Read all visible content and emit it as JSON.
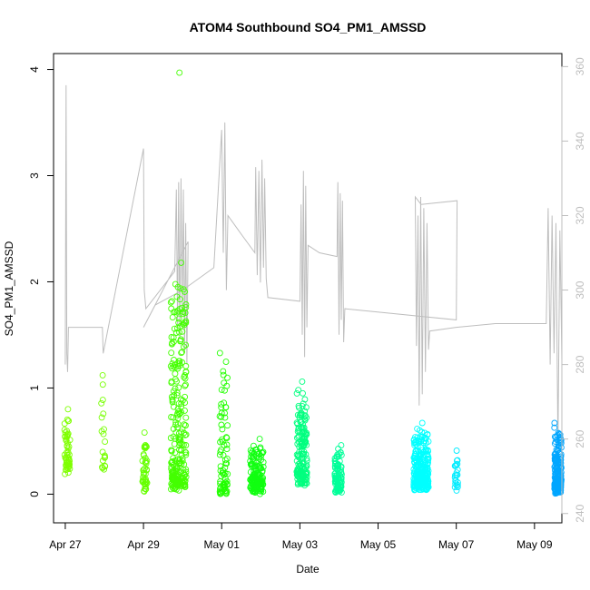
{
  "chart_data": {
    "type": "scatter",
    "title": "ATOM4 Southbound SO4_PM1_AMSSD",
    "xlabel": "Date",
    "ylabel": "SO4_PM1_AMSSD",
    "xlim": [
      -0.3,
      12.7
    ],
    "ylim": [
      -0.27,
      4.15
    ],
    "right_ylim": [
      237.5,
      363.5
    ],
    "x_ticks": [
      {
        "value": 0,
        "label": "Apr 27"
      },
      {
        "value": 2,
        "label": "Apr 29"
      },
      {
        "value": 4,
        "label": "May 01"
      },
      {
        "value": 6,
        "label": "May 03"
      },
      {
        "value": 8,
        "label": "May 05"
      },
      {
        "value": 10,
        "label": "May 07"
      },
      {
        "value": 12,
        "label": "May 09"
      }
    ],
    "y_ticks": [
      0,
      1,
      2,
      3,
      4
    ],
    "right_y_ticks": [
      240,
      260,
      280,
      300,
      320,
      340,
      360
    ],
    "legend": "none",
    "secondary_series_color": "#bebebe",
    "scatter_clusters": [
      {
        "x": 0.05,
        "spread": 0.07,
        "n": 55,
        "median": 0.3,
        "max": 0.8,
        "color": "#7fff00"
      },
      {
        "x": 0.97,
        "spread": 0.05,
        "n": 20,
        "median": 0.3,
        "max": 1.12,
        "color": "#77ff00"
      },
      {
        "x": 2.03,
        "spread": 0.06,
        "n": 45,
        "median": 0.12,
        "max": 0.58,
        "color": "#66ff00"
      },
      {
        "x": 2.9,
        "spread": 0.2,
        "n": 260,
        "median": 0.15,
        "max": 2.18,
        "color": "#44ff00"
      },
      {
        "x": 4.05,
        "spread": 0.1,
        "n": 80,
        "median": 0.1,
        "max": 1.33,
        "color": "#22ff00"
      },
      {
        "x": 4.9,
        "spread": 0.17,
        "n": 150,
        "median": 0.12,
        "max": 0.52,
        "color": "#11ff11"
      },
      {
        "x": 6.05,
        "spread": 0.13,
        "n": 160,
        "median": 0.2,
        "max": 1.06,
        "color": "#00ff7f"
      },
      {
        "x": 6.98,
        "spread": 0.09,
        "n": 90,
        "median": 0.13,
        "max": 0.46,
        "color": "#00ff99"
      },
      {
        "x": 9.1,
        "spread": 0.19,
        "n": 270,
        "median": 0.15,
        "max": 0.67,
        "color": "#00ffff"
      },
      {
        "x": 10.0,
        "spread": 0.04,
        "n": 25,
        "median": 0.15,
        "max": 0.41,
        "color": "#00ecff"
      },
      {
        "x": 12.6,
        "spread": 0.09,
        "n": 200,
        "median": 0.12,
        "max": 0.67,
        "color": "#00a6ff"
      }
    ],
    "outliers": [
      {
        "x": 2.92,
        "y": 3.97,
        "color": "#44ff00"
      },
      {
        "x": 2.88,
        "y": 1.95,
        "color": "#44ff00"
      }
    ],
    "secondary_series": [
      {
        "x": 0.0,
        "y": 280
      },
      {
        "x": 0.02,
        "y": 355
      },
      {
        "x": 0.04,
        "y": 283
      },
      {
        "x": 0.06,
        "y": 278
      },
      {
        "x": 0.08,
        "y": 290
      },
      {
        "x": 0.95,
        "y": 290
      },
      {
        "x": 0.97,
        "y": 283
      },
      {
        "x": 2.0,
        "y": 338
      },
      {
        "x": 2.02,
        "y": 300
      },
      {
        "x": 2.06,
        "y": 295
      },
      {
        "x": 2.8,
        "y": 305
      },
      {
        "x": 2.84,
        "y": 327
      },
      {
        "x": 2.87,
        "y": 290
      },
      {
        "x": 2.9,
        "y": 329
      },
      {
        "x": 2.93,
        "y": 287
      },
      {
        "x": 2.96,
        "y": 330
      },
      {
        "x": 2.99,
        "y": 293
      },
      {
        "x": 3.02,
        "y": 327
      },
      {
        "x": 3.05,
        "y": 283
      },
      {
        "x": 3.08,
        "y": 318
      },
      {
        "x": 3.11,
        "y": 280
      },
      {
        "x": 3.14,
        "y": 313
      },
      {
        "x": 2.0,
        "y": 290
      },
      {
        "x": 2.3,
        "y": 296
      },
      {
        "x": 3.0,
        "y": 300
      },
      {
        "x": 3.8,
        "y": 306
      },
      {
        "x": 4.0,
        "y": 343
      },
      {
        "x": 4.04,
        "y": 310
      },
      {
        "x": 4.08,
        "y": 345
      },
      {
        "x": 4.12,
        "y": 300
      },
      {
        "x": 4.16,
        "y": 320
      },
      {
        "x": 4.5,
        "y": 315
      },
      {
        "x": 4.85,
        "y": 310
      },
      {
        "x": 4.87,
        "y": 333
      },
      {
        "x": 4.91,
        "y": 304
      },
      {
        "x": 4.95,
        "y": 332
      },
      {
        "x": 4.99,
        "y": 302
      },
      {
        "x": 5.03,
        "y": 335
      },
      {
        "x": 5.07,
        "y": 306
      },
      {
        "x": 5.1,
        "y": 330
      },
      {
        "x": 5.14,
        "y": 303
      },
      {
        "x": 5.18,
        "y": 298
      },
      {
        "x": 6.0,
        "y": 297
      },
      {
        "x": 6.03,
        "y": 323
      },
      {
        "x": 6.06,
        "y": 288
      },
      {
        "x": 6.09,
        "y": 332
      },
      {
        "x": 6.12,
        "y": 282
      },
      {
        "x": 6.15,
        "y": 328
      },
      {
        "x": 6.18,
        "y": 290
      },
      {
        "x": 6.21,
        "y": 312
      },
      {
        "x": 6.5,
        "y": 310
      },
      {
        "x": 6.95,
        "y": 309
      },
      {
        "x": 6.97,
        "y": 329
      },
      {
        "x": 7.0,
        "y": 288
      },
      {
        "x": 7.03,
        "y": 326
      },
      {
        "x": 7.06,
        "y": 292
      },
      {
        "x": 7.09,
        "y": 324
      },
      {
        "x": 7.12,
        "y": 286
      },
      {
        "x": 7.15,
        "y": 295
      },
      {
        "x": 10.0,
        "y": 292
      },
      {
        "x": 10.02,
        "y": 324
      },
      {
        "x": 9.1,
        "y": 323
      },
      {
        "x": 8.95,
        "y": 325
      },
      {
        "x": 8.98,
        "y": 285
      },
      {
        "x": 9.02,
        "y": 320
      },
      {
        "x": 9.05,
        "y": 269
      },
      {
        "x": 9.09,
        "y": 325
      },
      {
        "x": 9.13,
        "y": 272
      },
      {
        "x": 9.17,
        "y": 322
      },
      {
        "x": 9.21,
        "y": 278
      },
      {
        "x": 9.25,
        "y": 318
      },
      {
        "x": 9.29,
        "y": 284
      },
      {
        "x": 9.32,
        "y": 289
      },
      {
        "x": 10.0,
        "y": 290
      },
      {
        "x": 11.0,
        "y": 291
      },
      {
        "x": 12.3,
        "y": 291
      },
      {
        "x": 12.35,
        "y": 322
      },
      {
        "x": 12.4,
        "y": 280
      },
      {
        "x": 12.45,
        "y": 320
      },
      {
        "x": 12.5,
        "y": 283
      },
      {
        "x": 12.55,
        "y": 318
      },
      {
        "x": 12.6,
        "y": 258
      },
      {
        "x": 12.65,
        "y": 316
      },
      {
        "x": 12.7,
        "y": 281
      }
    ]
  }
}
